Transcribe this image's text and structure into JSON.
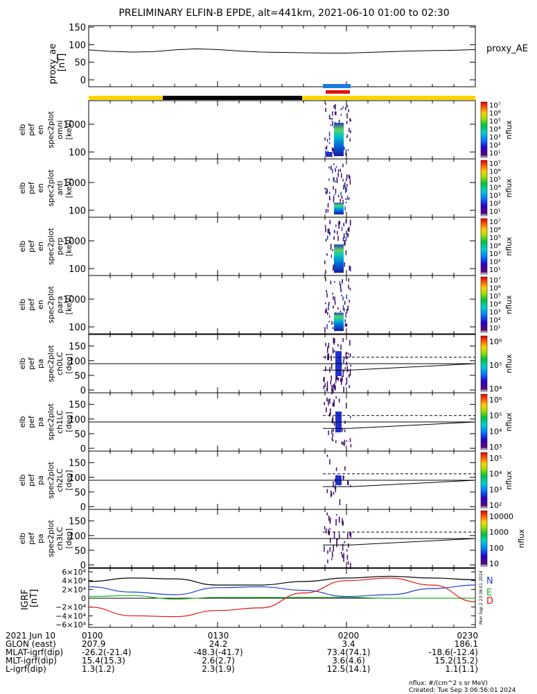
{
  "title": "PRELIMINARY ELFIN-B EPDE, alt=441km, 2021-06-10 01:00 to 02:30",
  "colors": {
    "ae_line": "#000000",
    "igrf_x": "#000000",
    "igrf_n": "#1f3fd0",
    "igrf_e": "#20b020",
    "igrf_d": "#e01010",
    "bar_yellow": "#ffd400",
    "bar_black": "#000000",
    "bar_blue": "#1a7be0",
    "bar_red": "#e01010"
  },
  "panels": {
    "ae": {
      "ylabel": [
        "proxy_ae",
        "[nT]"
      ],
      "ticks": [
        "150",
        "100",
        "50",
        "0"
      ],
      "legend": "proxy_AE"
    },
    "en": [
      {
        "ylabel": [
          "elb",
          "pef",
          "en",
          "spec2plot",
          "omni",
          "[keV]"
        ]
      },
      {
        "ylabel": [
          "elb",
          "pef",
          "en",
          "spec2plot",
          "anti",
          "[keV]"
        ]
      },
      {
        "ylabel": [
          "elb",
          "pef",
          "en",
          "spec2plot",
          "perp",
          "[keV]"
        ]
      },
      {
        "ylabel": [
          "elb",
          "pef",
          "en",
          "spec2plot",
          "para",
          "[keV]"
        ]
      }
    ],
    "en_ticks": [
      "1000",
      "100"
    ],
    "en_cbar": {
      "labels": [
        "10⁷",
        "10⁶",
        "10⁵",
        "10⁴",
        "10³",
        "10²",
        "10¹"
      ],
      "title": "nflux"
    },
    "pa": [
      {
        "ylabel": [
          "elb",
          "pef",
          "pa",
          "spec2plot",
          "ch0LC",
          "[deg]"
        ],
        "cbar": [
          "10⁶",
          "10⁵",
          "10⁴"
        ]
      },
      {
        "ylabel": [
          "elb",
          "pef",
          "pa",
          "spec2plot",
          "ch1LC",
          "[deg]"
        ],
        "cbar": [
          "10⁶",
          "10⁵",
          "10⁴",
          "10³"
        ]
      },
      {
        "ylabel": [
          "elb",
          "pef",
          "pa",
          "spec2plot",
          "ch2LC",
          "[deg]"
        ],
        "cbar": [
          "10⁵",
          "10⁴",
          "10³",
          "10²"
        ]
      },
      {
        "ylabel": [
          "elb",
          "pef",
          "pa",
          "spec2plot",
          "ch3LC",
          "[deg]"
        ],
        "cbar": [
          "10000",
          "1000",
          "100",
          "10"
        ]
      }
    ],
    "pa_ticks": [
      "150",
      "100",
      "50",
      "0"
    ],
    "pa_cbar_title": "nflux",
    "igrf": {
      "ylabel": [
        "IGRF",
        "[nT]"
      ],
      "ticks": [
        "6×10⁴",
        "4×10⁴",
        "2×10⁴",
        "0",
        "−2×10⁴",
        "−4×10⁴",
        "−6×10⁴"
      ],
      "legend": [
        "N",
        "E",
        "D"
      ],
      "side_note": "Mon Sep 2 23:38:01 2024"
    }
  },
  "footer": {
    "rows": [
      {
        "label": "2021 Jun 10",
        "values": [
          "0100",
          "0130",
          "0200",
          "0230"
        ]
      },
      {
        "label": "GLON (east)",
        "values": [
          "207.9",
          "24.2",
          "3.4",
          "186.1"
        ]
      },
      {
        "label": "MLAT-igrf(dip)",
        "values": [
          "-26.2(-21.4)",
          "-48.3(-41.7)",
          "73.4(74.1)",
          "-18.6(-12.4)"
        ]
      },
      {
        "label": "MLT-igrf(dip)",
        "values": [
          "15.4(15.3)",
          "2.6(2.7)",
          "3.6(4.6)",
          "15.2(15.2)"
        ]
      },
      {
        "label": "L-igrf(dip)",
        "values": [
          "1.3(1.2)",
          "2.3(1.9)",
          "12.5(14.1)",
          "1.1(1.1)"
        ]
      }
    ],
    "units_note": "nflux: #/(cm^2 s sr MeV)",
    "created": "Created: Tue Sep  3 06:56:01 2024"
  },
  "chart_data": [
    {
      "type": "line",
      "title": "PRELIMINARY ELFIN-B EPDE, alt=441km, 2021-06-10 01:00 to 02:30",
      "ylabel": "proxy_ae [nT]",
      "ylim": [
        0,
        150
      ],
      "xlim_min": [
        0,
        90
      ],
      "x_min": [
        0,
        5,
        10,
        15,
        20,
        25,
        30,
        35,
        40,
        45,
        50,
        55,
        60,
        65,
        70,
        75,
        80,
        85,
        90
      ],
      "series": [
        {
          "name": "proxy_AE",
          "values": [
            85,
            81,
            79,
            80,
            85,
            88,
            86,
            82,
            79,
            78,
            77,
            76,
            76,
            78,
            80,
            82,
            83,
            84,
            86
          ]
        }
      ]
    },
    {
      "type": "heatmap",
      "panels": [
        "omni",
        "anti",
        "perp",
        "para",
        "ch0LC",
        "ch1LC",
        "ch2LC",
        "ch3LC"
      ],
      "active_window_utc": [
        "01:52",
        "02:00"
      ],
      "colorbar_range_nflux": [
        10,
        10000000
      ],
      "colorbar_scale": "log"
    },
    {
      "type": "line",
      "ylabel": "IGRF [nT]",
      "ylim": [
        -60000,
        60000
      ],
      "x_min": [
        0,
        10,
        20,
        30,
        40,
        50,
        60,
        70,
        80,
        90
      ],
      "series": [
        {
          "name": "",
          "values": [
            38000,
            46000,
            44000,
            30000,
            30000,
            38000,
            46000,
            50000,
            46000,
            42000
          ]
        },
        {
          "name": "N",
          "values": [
            26000,
            14000,
            8000,
            24000,
            26000,
            18000,
            4000,
            8000,
            22000,
            30000
          ]
        },
        {
          "name": "E",
          "values": [
            4000,
            6000,
            -2000,
            2000,
            2000,
            2000,
            2000,
            0,
            0,
            0
          ]
        },
        {
          "name": "D",
          "values": [
            -20000,
            -40000,
            -42000,
            -28000,
            -22000,
            12000,
            40000,
            46000,
            30000,
            -8000
          ]
        }
      ]
    }
  ]
}
